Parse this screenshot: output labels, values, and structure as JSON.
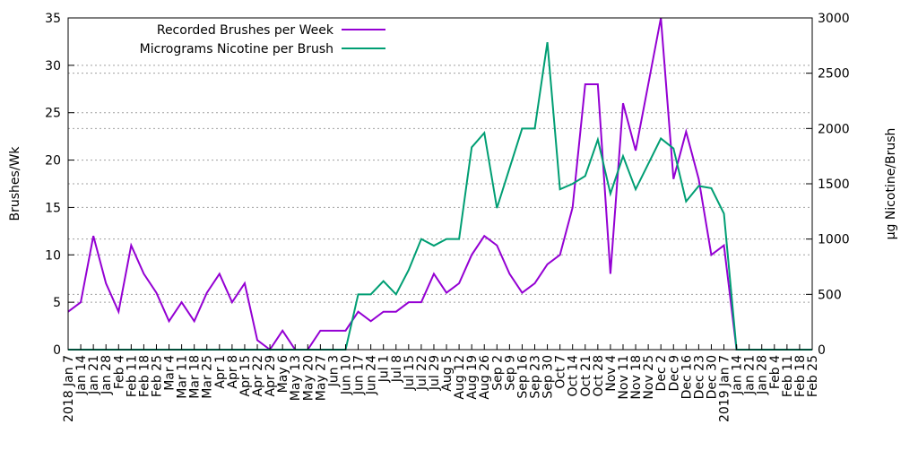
{
  "chart_data": {
    "type": "line",
    "categories": [
      "2018 Jan 7",
      "Jan 14",
      "Jan 21",
      "Jan 28",
      "Feb 4",
      "Feb 11",
      "Feb 18",
      "Feb 25",
      "Mar 4",
      "Mar 11",
      "Mar 18",
      "Mar 25",
      "Apr 1",
      "Apr 8",
      "Apr 15",
      "Apr 22",
      "Apr 29",
      "May 6",
      "May 13",
      "May 20",
      "May 27",
      "Jun 3",
      "Jun 10",
      "Jun 17",
      "Jun 24",
      "Jul 1",
      "Jul 8",
      "Jul 15",
      "Jul 22",
      "Jul 29",
      "Aug 5",
      "Aug 12",
      "Aug 19",
      "Aug 26",
      "Sep 2",
      "Sep 9",
      "Sep 16",
      "Sep 23",
      "Sep 30",
      "Oct 7",
      "Oct 14",
      "Oct 21",
      "Oct 28",
      "Nov 4",
      "Nov 11",
      "Nov 18",
      "Nov 25",
      "Dec 2",
      "Dec 9",
      "Dec 16",
      "Dec 23",
      "Dec 30",
      "2019 Jan 7",
      "Jan 14",
      "Jan 21",
      "Jan 28",
      "Feb 4",
      "Feb 11",
      "Feb 18",
      "Feb 25"
    ],
    "series": [
      {
        "name": "Recorded Brushes per Week",
        "axis": "left",
        "color": "#9400d3",
        "values": [
          4,
          5,
          12,
          7,
          4,
          11,
          8,
          6,
          3,
          5,
          3,
          6,
          8,
          5,
          7,
          1,
          0,
          2,
          0,
          0,
          2,
          2,
          2,
          4,
          3,
          4,
          4,
          5,
          5,
          8,
          6,
          7,
          10,
          12,
          11,
          8,
          6,
          7,
          9,
          10,
          15,
          28,
          28,
          8,
          26,
          21,
          28,
          35,
          18,
          23,
          18,
          10,
          11,
          0,
          0,
          0,
          0,
          0,
          0,
          0
        ]
      },
      {
        "name": "Micrograms Nicotine per Brush",
        "axis": "right",
        "color": "#009e73",
        "values": [
          0,
          0,
          0,
          0,
          0,
          0,
          0,
          0,
          0,
          0,
          0,
          0,
          0,
          0,
          0,
          0,
          0,
          0,
          0,
          0,
          0,
          0,
          0,
          500,
          500,
          620,
          500,
          720,
          1000,
          940,
          1000,
          1000,
          1830,
          1960,
          1280,
          1640,
          2000,
          2000,
          2780,
          1450,
          1500,
          1570,
          1900,
          1410,
          1750,
          1450,
          1680,
          1910,
          1820,
          1340,
          1480,
          1460,
          1230,
          0,
          0,
          0,
          0,
          0,
          0,
          0
        ]
      }
    ],
    "ylabel": "Brushes/Wk",
    "y2label": "µg Nicotine/Brush",
    "ylim": [
      0,
      35
    ],
    "y2lim": [
      0,
      3000
    ],
    "yticks": [
      0,
      5,
      10,
      15,
      20,
      25,
      30,
      35
    ],
    "y2ticks": [
      0,
      500,
      1000,
      1500,
      2000,
      2500,
      3000
    ],
    "grid": "horizontal dashed",
    "legend_position": "top-left"
  }
}
